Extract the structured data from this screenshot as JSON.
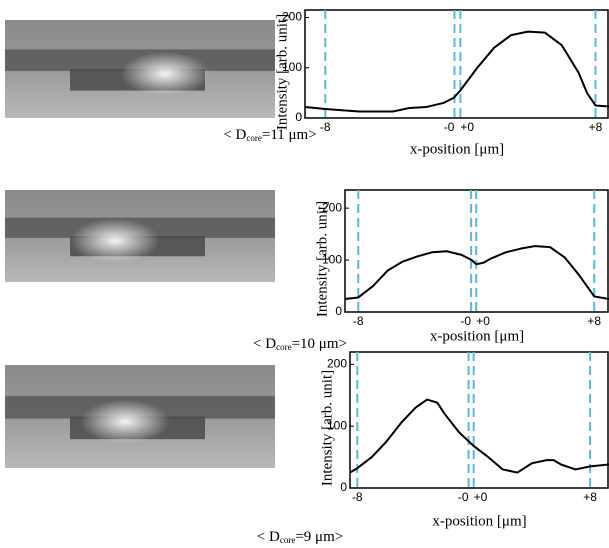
{
  "chart_data": [
    {
      "type": "line",
      "y_label": "Intensity [arb. unit]",
      "x_label": "x-position [μm]",
      "caption": {
        "prefix": "< D",
        "subscript": "core",
        "suffix": "=11 μm>"
      },
      "x": [
        -9.2,
        -8,
        -6,
        -4,
        -3,
        -2,
        -1,
        -0.4,
        0,
        1,
        2,
        3,
        4,
        5,
        6,
        7,
        7.5,
        8,
        8.8
      ],
      "values": [
        22,
        18,
        13,
        13,
        20,
        22,
        30,
        40,
        55,
        100,
        140,
        165,
        172,
        170,
        145,
        90,
        50,
        25,
        23
      ],
      "color": "#000000",
      "guide_color": "#5bb8d6",
      "xlim": [
        -9.2,
        8.8
      ],
      "ylim": [
        0,
        215
      ],
      "yticks": [
        0,
        100,
        200
      ],
      "xticks": [
        {
          "value": -8,
          "label": "-8"
        },
        {
          "value": -0.35,
          "label": "-0"
        },
        {
          "value": 0,
          "label": "+0"
        },
        {
          "value": 8,
          "label": "+8"
        }
      ]
    },
    {
      "type": "line",
      "y_label": "Intensity [arb. unit]",
      "x_label": "x-position [μm]",
      "caption": {
        "prefix": "< D",
        "subscript": "core",
        "suffix": "=10 μm>"
      },
      "x": [
        -8.9,
        -8,
        -7,
        -6,
        -5,
        -4,
        -3,
        -2,
        -1,
        -0.3,
        0,
        0.5,
        1,
        2,
        3,
        4,
        5,
        6,
        7,
        8,
        9
      ],
      "values": [
        25,
        28,
        50,
        80,
        97,
        107,
        115,
        117,
        110,
        100,
        92,
        95,
        103,
        115,
        122,
        127,
        125,
        105,
        70,
        30,
        25
      ],
      "color": "#000000",
      "guide_color": "#5bb8d6",
      "xlim": [
        -8.9,
        9
      ],
      "ylim": [
        0,
        235
      ],
      "yticks": [
        0,
        100,
        200
      ],
      "xticks": [
        {
          "value": -8,
          "label": "-8"
        },
        {
          "value": -0.35,
          "label": "-0"
        },
        {
          "value": 0,
          "label": "+0"
        },
        {
          "value": 8,
          "label": "+8"
        }
      ]
    },
    {
      "type": "line",
      "y_label": "Intensity [arb. unit]",
      "x_label": "x-position [μm]",
      "caption": {
        "prefix": "< D",
        "subscript": "core",
        "suffix": "=9 μm>"
      },
      "x": [
        -8.5,
        -8,
        -7,
        -6,
        -5,
        -4,
        -3.2,
        -2.5,
        -2,
        -1,
        0,
        1,
        2,
        3,
        4,
        5,
        5.5,
        6,
        7,
        8,
        9.3
      ],
      "values": [
        25,
        32,
        50,
        75,
        105,
        130,
        143,
        138,
        120,
        90,
        68,
        50,
        30,
        25,
        40,
        45,
        45,
        38,
        30,
        35,
        38
      ],
      "color": "#000000",
      "guide_color": "#5bb8d6",
      "xlim": [
        -8.5,
        9.3
      ],
      "ylim": [
        0,
        220
      ],
      "yticks": [
        0,
        100,
        200
      ],
      "xticks": [
        {
          "value": -8,
          "label": "-8"
        },
        {
          "value": -0.35,
          "label": "-0"
        },
        {
          "value": 0,
          "label": "+0"
        },
        {
          "value": 8,
          "label": "+8"
        }
      ]
    }
  ]
}
